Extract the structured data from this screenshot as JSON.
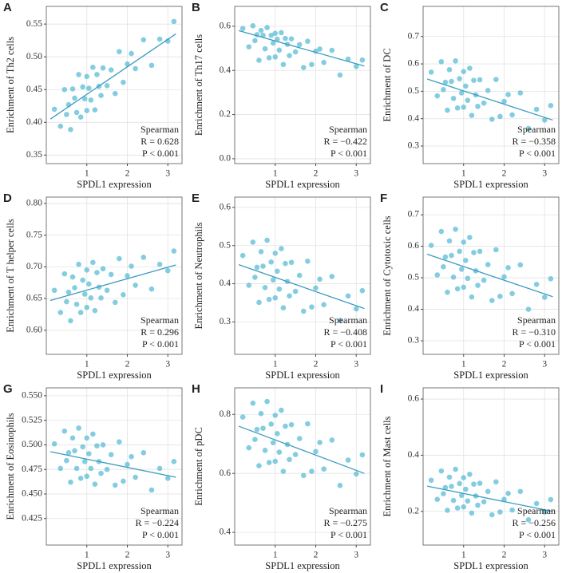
{
  "chart_data": [
    {
      "type": "scatter",
      "label": "A",
      "xlabel": "SPDL1 expression",
      "ylabel": "Enrichment of Th2 cells",
      "color": "#5bbcd6",
      "line_color": "#3a9cc0",
      "grid": true,
      "xlim": [
        0,
        3.35
      ],
      "xticks": [
        1,
        2,
        3
      ],
      "ylim": [
        0.337,
        0.577
      ],
      "yticks": [
        0.35,
        {
          "value": 0.4,
          "label": "0.40"
        },
        0.45,
        {
          "value": 0.5,
          "label": "0.50"
        },
        0.55
      ],
      "x": [
        0.2,
        0.35,
        0.45,
        0.5,
        0.55,
        0.6,
        0.65,
        0.7,
        0.75,
        0.8,
        0.85,
        0.9,
        0.95,
        1.0,
        1.0,
        1.05,
        1.1,
        1.15,
        1.2,
        1.25,
        1.3,
        1.35,
        1.4,
        1.5,
        1.6,
        1.7,
        1.8,
        1.9,
        2.0,
        2.1,
        2.2,
        2.4,
        2.6,
        2.8,
        3.0,
        3.15
      ],
      "y": [
        0.42,
        0.394,
        0.45,
        0.412,
        0.427,
        0.389,
        0.451,
        0.437,
        0.415,
        0.473,
        0.408,
        0.454,
        0.436,
        0.47,
        0.418,
        0.452,
        0.434,
        0.484,
        0.419,
        0.473,
        0.455,
        0.441,
        0.483,
        0.456,
        0.48,
        0.444,
        0.508,
        0.461,
        0.489,
        0.505,
        0.482,
        0.526,
        0.487,
        0.527,
        0.524,
        0.554
      ],
      "fit": {
        "x": [
          0.1,
          3.2
        ],
        "y": [
          0.405,
          0.535
        ]
      },
      "annotation": [
        "Spearman",
        "R = 0.628",
        "P < 0.001"
      ]
    },
    {
      "type": "scatter",
      "label": "B",
      "xlabel": "SPDL1 expression",
      "ylabel": "Enrichment of Th17 cells",
      "color": "#5bbcd6",
      "line_color": "#3a9cc0",
      "grid": true,
      "xlim": [
        0,
        3.35
      ],
      "xticks": [
        1,
        2,
        3
      ],
      "ylim": [
        -0.022,
        0.69
      ],
      "yticks": [
        {
          "value": 0,
          "label": "0.0"
        },
        0.2,
        0.4,
        0.6
      ],
      "x": [
        0.2,
        0.35,
        0.45,
        0.5,
        0.55,
        0.6,
        0.65,
        0.7,
        0.75,
        0.8,
        0.85,
        0.9,
        0.95,
        1.0,
        1.0,
        1.05,
        1.1,
        1.15,
        1.2,
        1.25,
        1.3,
        1.35,
        1.4,
        1.5,
        1.6,
        1.7,
        1.8,
        1.9,
        2.0,
        2.1,
        2.2,
        2.4,
        2.6,
        2.8,
        3.0,
        3.15
      ],
      "y": [
        0.59,
        0.507,
        0.602,
        0.535,
        0.562,
        0.446,
        0.581,
        0.559,
        0.498,
        0.594,
        0.457,
        0.559,
        0.524,
        0.568,
        0.461,
        0.541,
        0.492,
        0.571,
        0.427,
        0.545,
        0.518,
        0.467,
        0.543,
        0.484,
        0.517,
        0.413,
        0.532,
        0.427,
        0.487,
        0.497,
        0.436,
        0.491,
        0.379,
        0.451,
        0.418,
        0.447
      ],
      "fit": {
        "x": [
          0.1,
          3.2
        ],
        "y": [
          0.58,
          0.42
        ]
      },
      "annotation": [
        "Spearman",
        "R = −0.422",
        "P < 0.001"
      ]
    },
    {
      "type": "scatter",
      "label": "C",
      "xlabel": "SPDL1 expression",
      "ylabel": "Enrichment of DC",
      "color": "#5bbcd6",
      "line_color": "#3a9cc0",
      "grid": true,
      "xlim": [
        0,
        3.35
      ],
      "xticks": [
        1,
        2,
        3
      ],
      "ylim": [
        0.236,
        0.81
      ],
      "yticks": [
        0.3,
        0.4,
        0.5,
        0.6,
        0.7
      ],
      "x": [
        0.2,
        0.35,
        0.45,
        0.5,
        0.55,
        0.6,
        0.65,
        0.7,
        0.75,
        0.8,
        0.85,
        0.9,
        0.95,
        1.0,
        1.0,
        1.05,
        1.1,
        1.15,
        1.2,
        1.25,
        1.3,
        1.35,
        1.4,
        1.5,
        1.6,
        1.7,
        1.8,
        1.9,
        2.0,
        2.1,
        2.2,
        2.4,
        2.6,
        2.8,
        3.0,
        3.15
      ],
      "y": [
        0.57,
        0.483,
        0.608,
        0.506,
        0.533,
        0.431,
        0.579,
        0.536,
        0.474,
        0.611,
        0.439,
        0.546,
        0.494,
        0.572,
        0.442,
        0.519,
        0.467,
        0.584,
        0.412,
        0.54,
        0.487,
        0.445,
        0.542,
        0.457,
        0.503,
        0.398,
        0.543,
        0.408,
        0.463,
        0.488,
        0.414,
        0.494,
        0.364,
        0.434,
        0.395,
        0.448
      ],
      "fit": {
        "x": [
          0.1,
          3.2
        ],
        "y": [
          0.545,
          0.395
        ]
      },
      "annotation": [
        "Spearman",
        "R = −0.358",
        "P < 0.001"
      ]
    },
    {
      "type": "scatter",
      "label": "D",
      "xlabel": "SPDL1 expression",
      "ylabel": "Enrichment of T helper cells",
      "color": "#5bbcd6",
      "line_color": "#3a9cc0",
      "grid": true,
      "xlim": [
        0,
        3.35
      ],
      "xticks": [
        1,
        2,
        3
      ],
      "ylim": [
        0.562,
        0.81
      ],
      "yticks": [
        {
          "value": 0.6,
          "label": "0.60"
        },
        0.65,
        {
          "value": 0.7,
          "label": "0.70"
        },
        0.75,
        {
          "value": 0.8,
          "label": "0.80"
        }
      ],
      "x": [
        0.2,
        0.35,
        0.45,
        0.5,
        0.55,
        0.6,
        0.65,
        0.7,
        0.75,
        0.8,
        0.85,
        0.9,
        0.95,
        1.0,
        1.0,
        1.05,
        1.1,
        1.15,
        1.2,
        1.25,
        1.3,
        1.35,
        1.4,
        1.5,
        1.6,
        1.7,
        1.8,
        1.9,
        2.0,
        2.1,
        2.2,
        2.4,
        2.6,
        2.8,
        3.0,
        3.15
      ],
      "y": [
        0.663,
        0.628,
        0.689,
        0.645,
        0.66,
        0.615,
        0.684,
        0.667,
        0.641,
        0.704,
        0.628,
        0.679,
        0.657,
        0.695,
        0.636,
        0.673,
        0.651,
        0.707,
        0.631,
        0.691,
        0.668,
        0.651,
        0.697,
        0.663,
        0.688,
        0.644,
        0.713,
        0.656,
        0.686,
        0.701,
        0.671,
        0.715,
        0.665,
        0.704,
        0.694,
        0.725
      ],
      "fit": {
        "x": [
          0.1,
          3.2
        ],
        "y": [
          0.647,
          0.703
        ]
      },
      "annotation": [
        "Spearman",
        "R = 0.296",
        "P < 0.001"
      ]
    },
    {
      "type": "scatter",
      "label": "E",
      "xlabel": "SPDL1 expression",
      "ylabel": "Enrichment of Neutrophils",
      "color": "#5bbcd6",
      "line_color": "#3a9cc0",
      "grid": true,
      "xlim": [
        0,
        3.35
      ],
      "xticks": [
        1,
        2,
        3
      ],
      "ylim": [
        0.215,
        0.627
      ],
      "yticks": [
        0.3,
        0.4,
        0.5,
        0.6
      ],
      "x": [
        0.2,
        0.35,
        0.45,
        0.5,
        0.55,
        0.6,
        0.65,
        0.7,
        0.75,
        0.8,
        0.85,
        0.9,
        0.95,
        1.0,
        1.0,
        1.05,
        1.1,
        1.15,
        1.2,
        1.25,
        1.3,
        1.35,
        1.4,
        1.5,
        1.6,
        1.7,
        1.8,
        1.9,
        2.0,
        2.1,
        2.2,
        2.4,
        2.6,
        2.8,
        3.0,
        3.15
      ],
      "y": [
        0.474,
        0.396,
        0.509,
        0.417,
        0.443,
        0.351,
        0.484,
        0.446,
        0.39,
        0.514,
        0.359,
        0.457,
        0.41,
        0.48,
        0.363,
        0.433,
        0.386,
        0.492,
        0.337,
        0.453,
        0.406,
        0.368,
        0.456,
        0.38,
        0.422,
        0.328,
        0.459,
        0.339,
        0.389,
        0.412,
        0.345,
        0.419,
        0.304,
        0.368,
        0.334,
        0.382
      ],
      "fit": {
        "x": [
          0.1,
          3.2
        ],
        "y": [
          0.45,
          0.335
        ]
      },
      "annotation": [
        "Spearman",
        "R = −0.408",
        "P < 0.001"
      ]
    },
    {
      "type": "scatter",
      "label": "F",
      "xlabel": "SPDL1 expression",
      "ylabel": "Enrichment of Cytotoxic cells",
      "color": "#5bbcd6",
      "line_color": "#3a9cc0",
      "grid": true,
      "xlim": [
        0,
        3.35
      ],
      "xticks": [
        1,
        2,
        3
      ],
      "ylim": [
        0.257,
        0.756
      ],
      "yticks": [
        0.3,
        0.4,
        0.5,
        0.6,
        0.7
      ],
      "x": [
        0.2,
        0.35,
        0.45,
        0.5,
        0.55,
        0.6,
        0.65,
        0.7,
        0.75,
        0.8,
        0.85,
        0.9,
        0.95,
        1.0,
        1.0,
        1.05,
        1.1,
        1.15,
        1.2,
        1.25,
        1.3,
        1.35,
        1.4,
        1.5,
        1.6,
        1.7,
        1.8,
        1.9,
        2.0,
        2.1,
        2.2,
        2.4,
        2.6,
        2.8,
        3.0,
        3.15
      ],
      "y": [
        0.603,
        0.509,
        0.647,
        0.535,
        0.566,
        0.454,
        0.617,
        0.571,
        0.502,
        0.654,
        0.465,
        0.584,
        0.527,
        0.613,
        0.47,
        0.555,
        0.498,
        0.628,
        0.439,
        0.58,
        0.522,
        0.476,
        0.584,
        0.492,
        0.542,
        0.428,
        0.589,
        0.441,
        0.503,
        0.532,
        0.45,
        0.541,
        0.4,
        0.479,
        0.438,
        0.497
      ],
      "fit": {
        "x": [
          0.1,
          3.2
        ],
        "y": [
          0.575,
          0.44
        ]
      },
      "annotation": [
        "Spearman",
        "R = −0.310",
        "P < 0.001"
      ]
    },
    {
      "type": "scatter",
      "label": "G",
      "xlabel": "SPDL1 expression",
      "ylabel": "Enrichment of Eosinophils",
      "color": "#5bbcd6",
      "line_color": "#3a9cc0",
      "grid": true,
      "xlim": [
        0,
        3.35
      ],
      "xticks": [
        1,
        2,
        3
      ],
      "ylim": [
        0.398,
        0.558
      ],
      "yticks": [
        0.425,
        {
          "value": 0.45,
          "label": "0.450"
        },
        0.475,
        {
          "value": 0.5,
          "label": "0.500"
        },
        0.525,
        {
          "value": 0.55,
          "label": "0.550"
        }
      ],
      "x": [
        0.2,
        0.35,
        0.45,
        0.5,
        0.55,
        0.6,
        0.65,
        0.7,
        0.75,
        0.8,
        0.85,
        0.9,
        0.95,
        1.0,
        1.0,
        1.05,
        1.1,
        1.15,
        1.2,
        1.25,
        1.3,
        1.35,
        1.4,
        1.5,
        1.6,
        1.7,
        1.8,
        1.9,
        2.0,
        2.1,
        2.2,
        2.4,
        2.6,
        2.8,
        3.0,
        3.15
      ],
      "y": [
        0.501,
        0.476,
        0.514,
        0.484,
        0.492,
        0.462,
        0.507,
        0.494,
        0.476,
        0.517,
        0.466,
        0.498,
        0.483,
        0.507,
        0.468,
        0.491,
        0.476,
        0.511,
        0.46,
        0.499,
        0.483,
        0.471,
        0.5,
        0.475,
        0.49,
        0.459,
        0.503,
        0.463,
        0.48,
        0.488,
        0.467,
        0.492,
        0.454,
        0.476,
        0.466,
        0.483
      ],
      "fit": {
        "x": [
          0.1,
          3.2
        ],
        "y": [
          0.493,
          0.467
        ]
      },
      "annotation": [
        "Spearman",
        "R = −0.224",
        "P < 0.001"
      ]
    },
    {
      "type": "scatter",
      "label": "H",
      "xlabel": "SPDL1 expression",
      "ylabel": "Enrichment of pDC",
      "color": "#5bbcd6",
      "line_color": "#3a9cc0",
      "grid": true,
      "xlim": [
        0,
        3.35
      ],
      "xticks": [
        1,
        2,
        3
      ],
      "ylim": [
        0.357,
        0.89
      ],
      "yticks": [
        0.4,
        0.6,
        0.8
      ],
      "x": [
        0.2,
        0.35,
        0.45,
        0.5,
        0.55,
        0.6,
        0.65,
        0.7,
        0.75,
        0.8,
        0.85,
        0.9,
        0.95,
        1.0,
        1.0,
        1.05,
        1.1,
        1.15,
        1.2,
        1.25,
        1.3,
        1.35,
        1.4,
        1.5,
        1.6,
        1.7,
        1.8,
        1.9,
        2.0,
        2.1,
        2.2,
        2.4,
        2.6,
        2.8,
        3.0,
        3.15
      ],
      "y": [
        0.791,
        0.687,
        0.838,
        0.715,
        0.749,
        0.626,
        0.803,
        0.753,
        0.678,
        0.844,
        0.637,
        0.767,
        0.704,
        0.797,
        0.641,
        0.735,
        0.672,
        0.814,
        0.607,
        0.76,
        0.698,
        0.647,
        0.765,
        0.664,
        0.718,
        0.593,
        0.768,
        0.607,
        0.674,
        0.705,
        0.615,
        0.713,
        0.559,
        0.645,
        0.598,
        0.663
      ],
      "fit": {
        "x": [
          0.1,
          3.2
        ],
        "y": [
          0.76,
          0.6
        ]
      },
      "annotation": [
        "Spearman",
        "R = −0.275",
        "P < 0.001"
      ]
    },
    {
      "type": "scatter",
      "label": "I",
      "xlabel": "SPDL1 expression",
      "ylabel": "Enrichment of Mast cells",
      "color": "#5bbcd6",
      "line_color": "#3a9cc0",
      "grid": true,
      "xlim": [
        0,
        3.35
      ],
      "xticks": [
        1,
        2,
        3
      ],
      "ylim": [
        0.08,
        0.64
      ],
      "yticks": [
        0.2,
        0.4,
        0.6
      ],
      "x": [
        0.2,
        0.35,
        0.45,
        0.5,
        0.55,
        0.6,
        0.65,
        0.7,
        0.75,
        0.8,
        0.85,
        0.9,
        0.95,
        1.0,
        1.0,
        1.05,
        1.1,
        1.15,
        1.2,
        1.25,
        1.3,
        1.35,
        1.4,
        1.5,
        1.6,
        1.7,
        1.8,
        1.9,
        2.0,
        2.1,
        2.2,
        2.4,
        2.6,
        2.8,
        3.0,
        3.15
      ],
      "y": [
        0.311,
        0.243,
        0.344,
        0.263,
        0.285,
        0.204,
        0.322,
        0.289,
        0.239,
        0.35,
        0.212,
        0.299,
        0.257,
        0.32,
        0.216,
        0.279,
        0.237,
        0.332,
        0.194,
        0.297,
        0.255,
        0.222,
        0.3,
        0.234,
        0.271,
        0.188,
        0.305,
        0.198,
        0.243,
        0.264,
        0.205,
        0.271,
        0.17,
        0.228,
        0.198,
        0.242
      ],
      "fit": {
        "x": [
          0.1,
          3.2
        ],
        "y": [
          0.29,
          0.2
        ]
      },
      "annotation": [
        "Spearman",
        "R = −0.256",
        "P < 0.001"
      ]
    }
  ]
}
